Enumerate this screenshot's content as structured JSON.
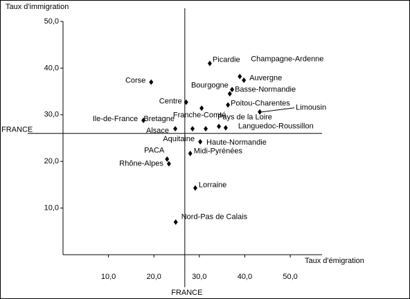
{
  "chart_data": {
    "type": "scatter",
    "y_label": "Taux d'immigration",
    "x_label": "Taux d'émigration",
    "xlim": [
      0,
      57
    ],
    "ylim": [
      0,
      50
    ],
    "xticks": [
      {
        "value": 10,
        "label": "10,0"
      },
      {
        "value": 20,
        "label": "20,0"
      },
      {
        "value": 30,
        "label": "30,0"
      },
      {
        "value": 40,
        "label": "40,0"
      },
      {
        "value": 50,
        "label": "50,0"
      }
    ],
    "yticks": [
      {
        "value": 10,
        "label": "10,0"
      },
      {
        "value": 20,
        "label": "20,0"
      },
      {
        "value": 30,
        "label": "30,0"
      },
      {
        "value": 40,
        "label": "40,0"
      },
      {
        "value": 50,
        "label": "50,0"
      }
    ],
    "reference_lines": {
      "x": {
        "value": 26.8,
        "label": "FRANCE"
      },
      "y": {
        "value": 26.0,
        "label": "FRANCE"
      }
    },
    "color": "#000000",
    "labels": [
      "Picardie",
      "Champagne-Ardenne",
      "Auvergne",
      "Corse",
      "Bourgogne",
      "Basse-Normandie",
      "Centre",
      "Poitou-Charentes",
      "Franche-Comté",
      "Limousin",
      "Ile-de-France",
      "Pays de la Loire",
      "Languedoc-Roussillon",
      "Bretagne",
      "Alsace",
      "Haute-Normandie",
      "Aquitaine",
      "Midi-Pyrénées",
      "PACA",
      "Rhône-Alpes",
      "Lorraine",
      "Nord-Pas de Calais"
    ],
    "x": [
      32.3,
      38.9,
      39.8,
      19.4,
      36.7,
      37.2,
      27.1,
      36.3,
      30.5,
      43.3,
      17.7,
      34.3,
      35.8,
      28.5,
      24.7,
      31.4,
      30.2,
      28.0,
      22.9,
      23.3,
      29.1,
      24.8
    ],
    "values": [
      41.0,
      38.2,
      37.4,
      37.0,
      34.5,
      35.4,
      32.7,
      32.1,
      31.4,
      30.6,
      28.8,
      27.5,
      27.2,
      27.0,
      27.0,
      27.0,
      24.2,
      21.7,
      20.5,
      19.5,
      14.3,
      7.0
    ]
  }
}
